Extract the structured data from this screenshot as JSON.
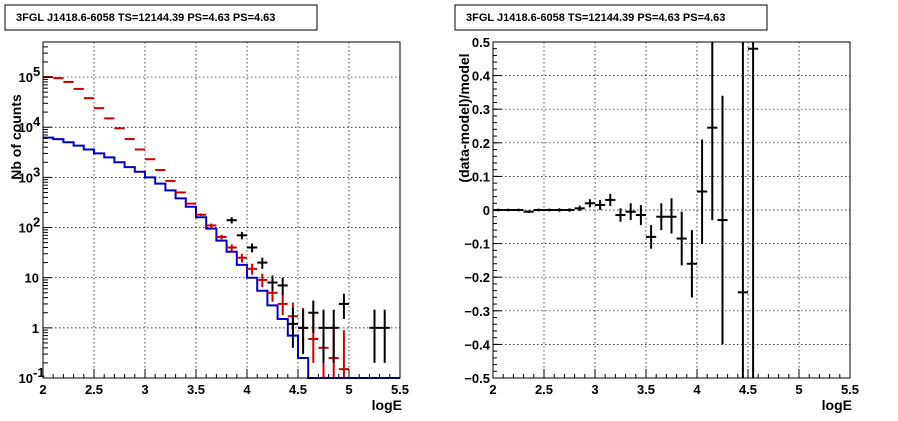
{
  "chart_data": [
    {
      "type": "histogram",
      "title": "3FGL J1418.6-6058 TS=12144.39 PS=4.63 PS=4.63",
      "xlabel": "logE",
      "ylabel": "Nb of counts",
      "xlim": [
        2,
        5.5
      ],
      "ylim": [
        0.1,
        500000
      ],
      "yscale": "log",
      "grid": true,
      "x_ticks": [
        "2",
        "2.5",
        "3",
        "3.5",
        "4",
        "4.5",
        "5",
        "5.5"
      ],
      "y_ticks": [
        {
          "label": "10",
          "sup": "-1",
          "v": 0.1
        },
        {
          "label": "1",
          "sup": "",
          "v": 1
        },
        {
          "label": "10",
          "sup": "",
          "v": 10
        },
        {
          "label": "10",
          "sup": "2",
          "v": 100
        },
        {
          "label": "10",
          "sup": "3",
          "v": 1000
        },
        {
          "label": "10",
          "sup": "4",
          "v": 10000
        },
        {
          "label": "10",
          "sup": "5",
          "v": 100000
        }
      ],
      "bin_edges": [
        2.0,
        2.1,
        2.2,
        2.3,
        2.4,
        2.5,
        2.6,
        2.7,
        2.8,
        2.9,
        3.0,
        3.1,
        3.2,
        3.3,
        3.4,
        3.5,
        3.6,
        3.7,
        3.8,
        3.9,
        4.0,
        4.1,
        4.2,
        4.3,
        4.4,
        4.5,
        4.6,
        4.7,
        4.8,
        4.9,
        5.0,
        5.1,
        5.2,
        5.3,
        5.4,
        5.5
      ],
      "series": [
        {
          "kind": "step",
          "color": "#0000cc",
          "values": [
            6200,
            5800,
            5000,
            4300,
            3600,
            3000,
            2500,
            2000,
            1600,
            1300,
            1000,
            750,
            550,
            380,
            260,
            160,
            95,
            55,
            33,
            18,
            10,
            5.5,
            2.8,
            1.5,
            0.7,
            0.25,
            0.05,
            0.05,
            0.05,
            0.05,
            0.05,
            0.05,
            0.05,
            0.05,
            0.05
          ]
        },
        {
          "kind": "points",
          "color": "#cc0000",
          "x": [
            2.05,
            2.15,
            2.25,
            2.35,
            2.45,
            2.55,
            2.65,
            2.75,
            2.85,
            2.95,
            3.05,
            3.15,
            3.25,
            3.35,
            3.45,
            3.55,
            3.65,
            3.75,
            3.85,
            3.95,
            4.05,
            4.15,
            4.25,
            4.35,
            4.45,
            4.55,
            4.65,
            4.75,
            4.85,
            4.95
          ],
          "y": [
            100000,
            95000,
            80000,
            58000,
            38000,
            24000,
            15000,
            9500,
            5800,
            3600,
            2300,
            1400,
            850,
            500,
            300,
            180,
            110,
            65,
            40,
            25,
            15,
            9,
            5,
            3,
            1.7,
            1,
            0.6,
            0.4,
            0.25,
            0.15
          ],
          "err_low": [
            99000,
            94000,
            79000,
            57500,
            37700,
            23800,
            14850,
            9400,
            5730,
            3550,
            2260,
            1370,
            830,
            485,
            290,
            170,
            100,
            58,
            34,
            20,
            11.5,
            6.5,
            3.3,
            1.8,
            0.9,
            0.4,
            0.2,
            0.1,
            0.05,
            0.02
          ],
          "err_high": [
            101000,
            96000,
            81000,
            58500,
            38300,
            24200,
            15150,
            9600,
            5870,
            3650,
            2340,
            1430,
            870,
            515,
            310,
            190,
            120,
            72,
            46,
            30,
            19,
            12,
            7.5,
            5,
            3.2,
            2.5,
            2,
            1.5,
            1.2,
            0.9
          ]
        },
        {
          "kind": "points",
          "color": "#000000",
          "x": [
            3.85,
            3.95,
            4.05,
            4.15,
            4.25,
            4.35,
            4.45,
            4.55,
            4.65,
            4.75,
            4.85,
            4.95,
            5.25,
            5.35
          ],
          "y": [
            140,
            70,
            40,
            20,
            8,
            7,
            1.2,
            1,
            2,
            1,
            1,
            3,
            1,
            1
          ],
          "err_low": [
            120,
            58,
            32,
            15,
            5.5,
            4.5,
            0.4,
            0.3,
            0.8,
            0.2,
            0.2,
            1.5,
            0.2,
            0.2
          ],
          "err_high": [
            160,
            82,
            48,
            25,
            11,
            10,
            2.5,
            2.3,
            3.5,
            2.3,
            2.3,
            4.8,
            2.3,
            2.3
          ]
        }
      ]
    },
    {
      "type": "scatter",
      "title": "3FGL J1418.6-6058 TS=12144.39 PS=4.63 PS=4.63",
      "xlabel": "logE",
      "ylabel": "(data-model)/model",
      "xlim": [
        2,
        5.5
      ],
      "ylim": [
        -0.5,
        0.5
      ],
      "grid": true,
      "x_ticks": [
        "2",
        "2.5",
        "3",
        "3.5",
        "4",
        "4.5",
        "5",
        "5.5"
      ],
      "y_ticks": [
        "−0.5",
        "−0.4",
        "−0.3",
        "−0.2",
        "−0.1",
        "0",
        "0.1",
        "0.2",
        "0.3",
        "0.4",
        "0.5"
      ],
      "series": [
        {
          "color": "#000000",
          "x": [
            2.05,
            2.15,
            2.25,
            2.35,
            2.45,
            2.55,
            2.65,
            2.75,
            2.85,
            2.95,
            3.05,
            3.15,
            3.25,
            3.35,
            3.45,
            3.55,
            3.65,
            3.75,
            3.85,
            3.95,
            4.05,
            4.15,
            4.25,
            4.45,
            4.55
          ],
          "y": [
            0.0,
            0.0,
            0.0,
            -0.005,
            0.0,
            0.0,
            0.0,
            0.0,
            0.005,
            0.02,
            0.015,
            0.03,
            -0.015,
            -0.005,
            -0.015,
            -0.08,
            -0.02,
            -0.02,
            -0.085,
            -0.16,
            0.055,
            0.245,
            -0.03,
            -0.245,
            0.48
          ],
          "err_low": [
            -0.004,
            -0.004,
            -0.004,
            -0.009,
            -0.004,
            -0.004,
            -0.005,
            -0.005,
            -0.003,
            0.008,
            0.0,
            0.012,
            -0.035,
            -0.03,
            -0.045,
            -0.115,
            -0.06,
            -0.07,
            -0.165,
            -0.26,
            -0.1,
            -0.03,
            -0.4,
            -0.5,
            -0.5
          ],
          "err_high": [
            0.004,
            0.004,
            0.004,
            -0.001,
            0.004,
            0.004,
            0.005,
            0.005,
            0.013,
            0.032,
            0.03,
            0.048,
            0.005,
            0.02,
            0.015,
            -0.045,
            0.02,
            0.035,
            -0.005,
            -0.06,
            0.21,
            0.5,
            0.34,
            0.5,
            0.5
          ]
        }
      ]
    }
  ]
}
